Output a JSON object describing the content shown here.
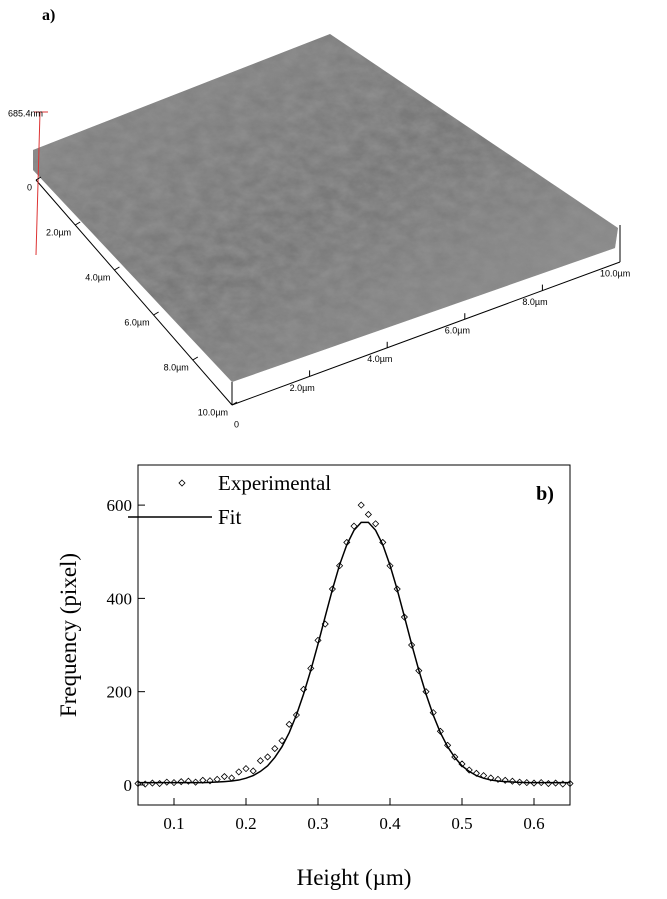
{
  "panel_a": {
    "label": "a)",
    "z_label": "685.4nm",
    "left_axis": [
      "0",
      "2.0µm",
      "4.0µm",
      "6.0µm",
      "8.0µm",
      "10.0µm"
    ],
    "right_axis": [
      "0",
      "2.0µm",
      "4.0µm",
      "6.0µm",
      "8.0µm",
      "10.0µm"
    ]
  },
  "chart_data": {
    "type": "scatter-line",
    "annotation": "b)",
    "x_label": "Height (µm)",
    "y_label": "Frequency (pixel)",
    "x": [
      0.05,
      0.06,
      0.07,
      0.08,
      0.09,
      0.1,
      0.11,
      0.12,
      0.13,
      0.14,
      0.15,
      0.16,
      0.17,
      0.18,
      0.19,
      0.2,
      0.21,
      0.22,
      0.23,
      0.24,
      0.25,
      0.26,
      0.27,
      0.28,
      0.29,
      0.3,
      0.31,
      0.32,
      0.33,
      0.34,
      0.35,
      0.36,
      0.37,
      0.38,
      0.39,
      0.4,
      0.41,
      0.42,
      0.43,
      0.44,
      0.45,
      0.46,
      0.47,
      0.48,
      0.49,
      0.5,
      0.51,
      0.52,
      0.53,
      0.54,
      0.55,
      0.56,
      0.57,
      0.58,
      0.59,
      0.6,
      0.61,
      0.62,
      0.63,
      0.64,
      0.65
    ],
    "series": [
      {
        "name": "Experimental",
        "color": "#000000",
        "style": "marker",
        "values": [
          3,
          2,
          4,
          3,
          6,
          5,
          7,
          8,
          6,
          10,
          9,
          12,
          18,
          15,
          28,
          35,
          30,
          52,
          60,
          78,
          95,
          130,
          150,
          205,
          250,
          310,
          345,
          420,
          470,
          520,
          555,
          600,
          580,
          560,
          520,
          470,
          420,
          360,
          300,
          245,
          200,
          155,
          115,
          85,
          60,
          45,
          32,
          25,
          20,
          15,
          12,
          10,
          8,
          6,
          5,
          4,
          5,
          3,
          4,
          2,
          3
        ]
      },
      {
        "name": "Fit",
        "color": "#000000",
        "style": "line",
        "values": [
          5,
          5,
          5,
          5,
          5,
          5,
          5,
          5,
          5,
          5,
          5.6,
          6.3,
          7.2,
          8.4,
          10.5,
          14.5,
          20,
          29,
          41,
          59,
          82,
          112,
          150,
          195,
          246,
          302,
          361,
          419,
          472,
          515,
          546,
          563,
          563,
          546,
          515,
          471,
          419,
          361,
          302,
          246,
          195,
          150,
          112,
          82,
          59,
          41,
          29,
          20,
          14.5,
          10.5,
          8.4,
          7.2,
          6.3,
          5.6,
          5,
          5,
          5,
          5,
          5,
          5,
          5
        ]
      }
    ],
    "xlim": [
      0.05,
      0.65
    ],
    "xticks": [
      0.1,
      0.2,
      0.3,
      0.4,
      0.5,
      0.6
    ],
    "ylim": [
      -43,
      686
    ],
    "yticks": [
      0,
      200,
      400,
      600
    ],
    "legend": "upper-left"
  }
}
